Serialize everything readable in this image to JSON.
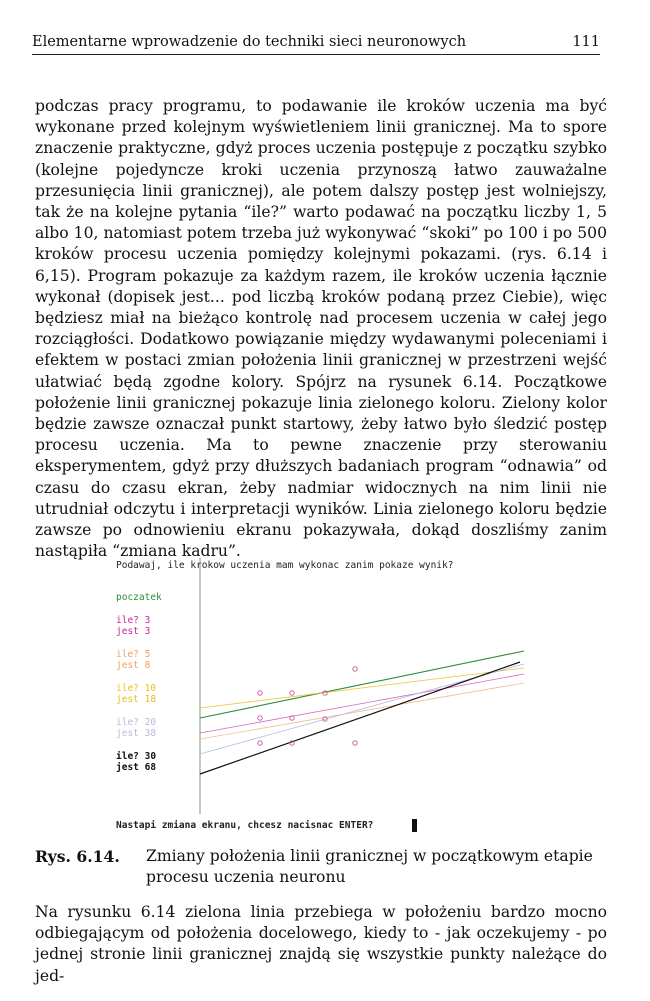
{
  "header": {
    "title": "Elementarne wprowadzenie do techniki sieci neuronowych",
    "page_number": "111"
  },
  "paragraph1": "podczas pracy programu, to podawanie ile kroków uczenia ma być wykonane przed kolejnym wyświetleniem linii granicznej. Ma to spore znaczenie praktyczne, gdyż proces uczenia postępuje z początku szybko (kolejne pojedyncze kroki uczenia przynoszą łatwo zauważalne przesunięcia linii granicznej), ale potem dalszy postęp jest wolniejszy, tak że na kolejne pytania “ile?” warto podawać na początku liczby 1, 5 albo 10, natomiast potem trzeba już wykonywać “skoki” po 100 i po 500 kroków procesu uczenia pomiędzy kolejnymi pokazami. (rys. 6.14 i 6,15). Program pokazuje za każdym razem, ile kroków uczenia łącznie wykonał (dopisek jest... pod liczbą kroków podaną przez Ciebie), więc będziesz miał na bieżąco kontrolę nad procesem uczenia w całej jego rozciągłości. Dodatkowo powiązanie między wydawanymi poleceniami i efektem w postaci zmian położenia linii granicznej w przestrzeni wejść ułatwiać będą zgodne kolory. Spójrz na rysunek 6.14. Początkowe położenie linii granicznej pokazuje linia zielonego koloru. Zielony kolor będzie zawsze oznaczał punkt startowy, żeby łatwo było śledzić postęp procesu uczenia. Ma to pewne znaczenie przy sterowaniu eksperymentem, gdyż przy dłuższych badaniach program “odnawia” od czasu do czasu ekran, żeby nadmiar widocznych na nim linii nie utrudniał odczytu i interpretacji wyników. Linia zielonego koloru będzie zawsze po odnowieniu ekranu pokazywała, dokąd doszliśmy zanim nastąpiła “zmiana kadru”.",
  "figure": {
    "prompt": "Podawaj, ile krokow uczenia mam wykonac zanim pokaze wynik?",
    "start_label": "poczatek",
    "entries": [
      {
        "ile": "ile? 3",
        "jest": "jest 3",
        "color": "#c8279a"
      },
      {
        "ile": "ile? 5",
        "jest": "jest 8",
        "color": "#f0a060"
      },
      {
        "ile": "ile? 10",
        "jest": "jest 18",
        "color": "#e8c020"
      },
      {
        "ile": "ile? 20",
        "jest": "jest 38",
        "color": "#b8b8e0"
      },
      {
        "ile": "ile? 30",
        "jest": "jest 68",
        "color": "#111111"
      }
    ],
    "footer": "Nastapi zmiana ekranu, chcesz nacisnac ENTER?",
    "colors": {
      "start": "#2e8b3a",
      "axis": "#7a9a7a",
      "points": "#d0509a"
    }
  },
  "caption": {
    "label": "Rys. 6.14.",
    "text": "Zmiany położenia linii granicznej w początkowym etapie procesu uczenia neuronu"
  },
  "paragraph2": "Na rysunku 6.14 zielona linia przebiega w położeniu bardzo mocno odbiegającym od położenia docelowego, kiedy to - jak oczekujemy - po jednej stronie linii granicznej znajdą się wszystkie punkty należące do jed-"
}
